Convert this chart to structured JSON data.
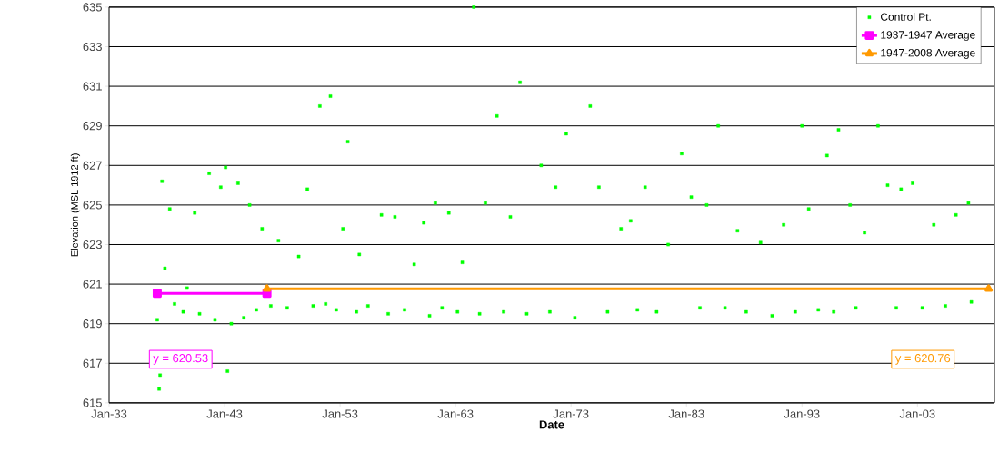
{
  "chart_data": {
    "type": "scatter",
    "xlabel": "Date",
    "ylabel": "Elevation (MSL 1912 ft)",
    "xlim": [
      "1933-01",
      "2009-09"
    ],
    "xticks": [
      {
        "value": "1933-01",
        "label": "Jan-33"
      },
      {
        "value": "1943-01",
        "label": "Jan-43"
      },
      {
        "value": "1953-01",
        "label": "Jan-53"
      },
      {
        "value": "1963-01",
        "label": "Jan-63"
      },
      {
        "value": "1973-01",
        "label": "Jan-73"
      },
      {
        "value": "1983-01",
        "label": "Jan-83"
      },
      {
        "value": "1993-01",
        "label": "Jan-93"
      },
      {
        "value": "2003-01",
        "label": "Jan-03"
      }
    ],
    "ylim": [
      615,
      635
    ],
    "yticks": [
      615,
      617,
      619,
      621,
      623,
      625,
      627,
      629,
      631,
      633,
      635
    ],
    "grid": "y",
    "legend": "top right",
    "series": [
      {
        "name": "Control Pt.",
        "marker": "square",
        "color": "#00ff00",
        "x": [
          "1937-03",
          "1937-05",
          "1937-06",
          "1937-08",
          "1937-11",
          "1938-04",
          "1938-09",
          "1939-06",
          "1939-10",
          "1940-06",
          "1940-11",
          "1941-09",
          "1942-03",
          "1942-09",
          "1943-02",
          "1943-04",
          "1943-08",
          "1944-03",
          "1944-09",
          "1945-03",
          "1945-10",
          "1946-04",
          "1947-01",
          "1947-09",
          "1948-06",
          "1949-06",
          "1950-03",
          "1950-09",
          "1951-04",
          "1951-10",
          "1952-03",
          "1952-09",
          "1953-04",
          "1953-09",
          "1954-06",
          "1954-09",
          "1955-06",
          "1956-08",
          "1957-03",
          "1957-10",
          "1958-08",
          "1959-06",
          "1960-04",
          "1960-10",
          "1961-04",
          "1961-11",
          "1962-06",
          "1963-03",
          "1963-08",
          "1964-08",
          "1965-02",
          "1965-08",
          "1966-08",
          "1967-03",
          "1967-10",
          "1968-08",
          "1969-03",
          "1970-06",
          "1971-03",
          "1971-09",
          "1972-08",
          "1973-05",
          "1974-09",
          "1975-06",
          "1976-03",
          "1977-05",
          "1978-03",
          "1978-10",
          "1979-06",
          "1980-06",
          "1981-06",
          "1982-08",
          "1983-06",
          "1984-03",
          "1984-10",
          "1985-10",
          "1986-05",
          "1987-06",
          "1988-03",
          "1989-06",
          "1990-06",
          "1991-06",
          "1992-06",
          "1993-01",
          "1993-08",
          "1994-06",
          "1995-03",
          "1995-10",
          "1996-03",
          "1997-03",
          "1997-09",
          "1998-06",
          "1999-08",
          "2000-06",
          "2001-03",
          "2001-08",
          "2002-08",
          "2003-06",
          "2004-06",
          "2005-06",
          "2006-05",
          "2007-06",
          "2007-09"
        ],
        "values": [
          619.2,
          615.7,
          616.4,
          626.2,
          621.8,
          624.8,
          620.0,
          619.6,
          620.8,
          624.6,
          619.5,
          626.6,
          619.2,
          625.9,
          626.9,
          616.6,
          619.0,
          626.1,
          619.3,
          625.0,
          619.7,
          623.8,
          619.9,
          623.2,
          619.8,
          622.4,
          625.8,
          619.9,
          630.0,
          620.0,
          630.5,
          619.7,
          623.8,
          628.2,
          619.6,
          622.5,
          619.9,
          624.5,
          619.5,
          624.4,
          619.7,
          622.0,
          624.1,
          619.4,
          625.1,
          619.8,
          624.6,
          619.6,
          622.1,
          635.0,
          619.5,
          625.1,
          629.5,
          619.6,
          624.4,
          631.2,
          619.5,
          627.0,
          619.6,
          625.9,
          628.6,
          619.3,
          630.0,
          625.9,
          619.6,
          623.8,
          624.2,
          619.7,
          625.9,
          619.6,
          623.0,
          627.6,
          625.4,
          619.8,
          625.0,
          629.0,
          619.8,
          623.7,
          619.6,
          623.1,
          619.4,
          624.0,
          619.6,
          629.0,
          624.8,
          619.7,
          627.5,
          619.6,
          628.8,
          625.0,
          619.8,
          623.6,
          629.0,
          626.0,
          619.8,
          625.8,
          626.1,
          619.8,
          624.0,
          619.9,
          624.5,
          625.1,
          620.1
        ]
      },
      {
        "name": "1937-1947 Average",
        "type": "line",
        "marker": "square",
        "color": "#ff00ff",
        "x": [
          "1937-03",
          "1946-09"
        ],
        "values": [
          620.53,
          620.53
        ]
      },
      {
        "name": "1947-2008 Average",
        "type": "line",
        "marker": "triangle",
        "color": "#ff9900",
        "x": [
          "1946-09",
          "2009-03"
        ],
        "values": [
          620.76,
          620.76
        ]
      }
    ],
    "annotations": [
      "y = 620.53",
      "y = 620.76"
    ]
  }
}
